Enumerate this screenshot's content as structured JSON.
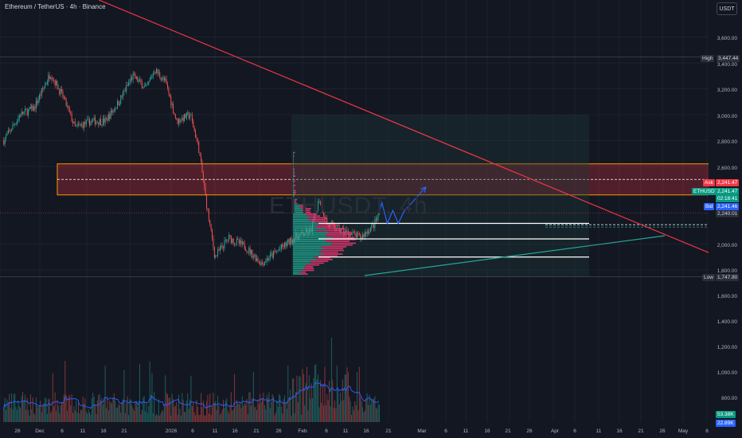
{
  "header": {
    "symbol_title": "Ethereum / TetherUS · 4h · Binance",
    "currency_button": "USDT"
  },
  "watermark": "ETHUSDT, 4h",
  "price_axis": {
    "ticks": [
      "3,600.00",
      "3,400.00",
      "3,200.00",
      "3,000.00",
      "2,800.00",
      "2,600.00",
      "2,000.00",
      "1,800.00",
      "1,600.00",
      "1,400.00",
      "1,200.00",
      "1,000.00",
      "800.00"
    ]
  },
  "price_badges": {
    "high_label": "High",
    "high_value": "3,447.44",
    "ask_label": "Ask",
    "ask_value": "2,241.47",
    "symbol_label": "ETHUSDT",
    "symbol_price": "2,241.47",
    "countdown": "02:18:41",
    "bid_label": "Bid",
    "bid_value": "2,241.46",
    "last_value": "2,240.01",
    "low_label": "Low",
    "low_value": "1,747.80",
    "volume_value": "53.38K",
    "volume_ma_value": "22.89K"
  },
  "time_axis": {
    "labels": [
      "26",
      "Dec",
      "6",
      "11",
      "16",
      "21",
      "2026",
      "6",
      "11",
      "16",
      "21",
      "26",
      "Feb",
      "6",
      "11",
      "16",
      "21",
      "Mar",
      "6",
      "11",
      "16",
      "21",
      "26",
      "Apr",
      "6",
      "11",
      "16",
      "21",
      "26",
      "May",
      "6"
    ]
  },
  "colors": {
    "background": "#131722",
    "up": "#26a69a",
    "down": "#ef5350",
    "trendline": "#f23645",
    "support_line": "#26a69a",
    "projection": "#2962ff",
    "zone_border": "#ff9800",
    "profile_up": "#22ab94",
    "profile_down": "#f23674"
  },
  "chart_data": {
    "type": "candlestick",
    "symbol": "ETHUSDT",
    "interval": "4h",
    "exchange": "Binance",
    "price_range": [
      1747.8,
      3447.44
    ],
    "high": 3447.44,
    "low": 1747.8,
    "last": 2240.01,
    "ask": 2241.47,
    "bid": 2241.46,
    "approx_close_path": [
      {
        "date": "Nov 22",
        "price": 2800
      },
      {
        "date": "Nov 28",
        "price": 3000
      },
      {
        "date": "Dec 3",
        "price": 3050
      },
      {
        "date": "Dec 9",
        "price": 3320
      },
      {
        "date": "Dec 14",
        "price": 3120
      },
      {
        "date": "Dec 18",
        "price": 2900
      },
      {
        "date": "Dec 24",
        "price": 2950
      },
      {
        "date": "Dec 29",
        "price": 2950
      },
      {
        "date": "Jan 3",
        "price": 3100
      },
      {
        "date": "Jan 8",
        "price": 3300
      },
      {
        "date": "Jan 13",
        "price": 3200
      },
      {
        "date": "Jan 16",
        "price": 3350
      },
      {
        "date": "Jan 20",
        "price": 3250
      },
      {
        "date": "Jan 24",
        "price": 2950
      },
      {
        "date": "Jan 29",
        "price": 3000
      },
      {
        "date": "Feb 1",
        "price": 2750
      },
      {
        "date": "Feb 4",
        "price": 2300
      },
      {
        "date": "Feb 7",
        "price": 1900
      },
      {
        "date": "Feb 12",
        "price": 2050
      },
      {
        "date": "Feb 18",
        "price": 1980
      },
      {
        "date": "Feb 24",
        "price": 1850
      },
      {
        "date": "Mar 2",
        "price": 1950
      },
      {
        "date": "Mar 8",
        "price": 2050
      },
      {
        "date": "Mar 14",
        "price": 2100
      },
      {
        "date": "Mar 17",
        "price": 2350
      },
      {
        "date": "Mar 20",
        "price": 2150
      },
      {
        "date": "Mar 26",
        "price": 2100
      },
      {
        "date": "Apr 1",
        "price": 2050
      },
      {
        "date": "Apr 6",
        "price": 2150
      },
      {
        "date": "Apr 8",
        "price": 2240
      }
    ],
    "annotations": {
      "resistance_zone": [
        2380,
        2620
      ],
      "zone_midline": 2500,
      "support_levels": [
        2160,
        2040,
        1900
      ],
      "dashed_level": 2150,
      "descending_trendline": [
        {
          "date": "Nov 22",
          "price": 3900
        },
        {
          "date": "May 8",
          "price": 1900
        }
      ],
      "ascending_trendline": [
        {
          "date": "Feb 21",
          "price": 1780
        },
        {
          "date": "Apr 26",
          "price": 2050
        }
      ],
      "projection_path": [
        {
          "date": "Apr 8",
          "price": 2240
        },
        {
          "date": "Apr 9",
          "price": 2320
        },
        {
          "date": "Apr 11",
          "price": 2160
        },
        {
          "date": "Apr 13",
          "price": 2260
        },
        {
          "date": "Apr 15",
          "price": 2160
        },
        {
          "date": "Apr 17",
          "price": 2250
        },
        {
          "date": "Apr 25",
          "price": 2440
        }
      ]
    }
  }
}
